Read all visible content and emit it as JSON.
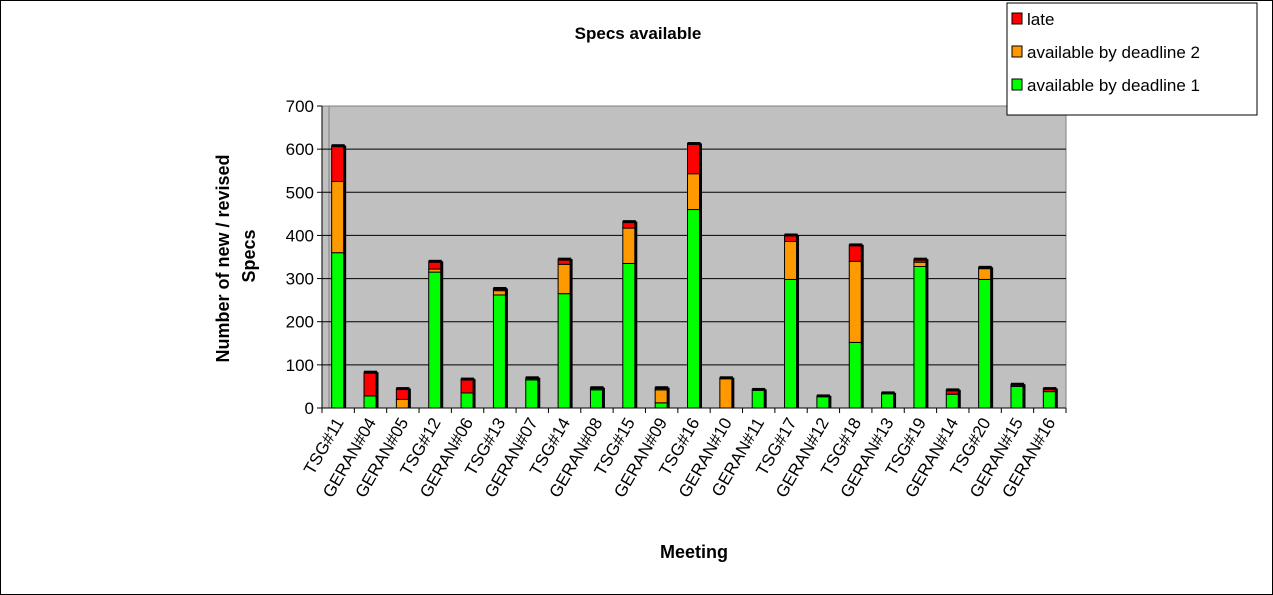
{
  "chart_data": {
    "type": "bar",
    "stacked": true,
    "title": "Specs available",
    "xlabel": "Meeting",
    "ylabel": "Number of new / revised Specs",
    "ylim": [
      0,
      700
    ],
    "yticks": [
      0,
      100,
      200,
      300,
      400,
      500,
      600,
      700
    ],
    "grid": true,
    "legend_position": "top-right",
    "categories": [
      "TSG#11",
      "GERAN#04",
      "GERAN#05",
      "TSG#12",
      "GERAN#06",
      "TSG#13",
      "GERAN#07",
      "TSG#14",
      "GERAN#08",
      "TSG#15",
      "GERAN#09",
      "TSG#16",
      "GERAN#10",
      "GERAN#11",
      "TSG#17",
      "GERAN#12",
      "TSG#18",
      "GERAN#13",
      "TSG#19",
      "GERAN#14",
      "TSG#20",
      "GERAN#15",
      "GERAN#16"
    ],
    "series": [
      {
        "name": "available by deadline 1",
        "color": "#00ff00",
        "values": [
          360,
          28,
          0,
          315,
          35,
          262,
          65,
          265,
          42,
          335,
          12,
          460,
          0,
          43,
          298,
          28,
          152,
          35,
          328,
          32,
          298,
          50,
          38
        ]
      },
      {
        "name": "available by deadline 2",
        "color": "#ff9900",
        "values": [
          165,
          0,
          20,
          7,
          0,
          10,
          0,
          68,
          0,
          82,
          30,
          83,
          68,
          0,
          88,
          0,
          188,
          0,
          10,
          0,
          25,
          0,
          0
        ]
      },
      {
        "name": "late",
        "color": "#ff0000",
        "values": [
          83,
          55,
          25,
          18,
          32,
          5,
          5,
          12,
          5,
          15,
          5,
          70,
          2,
          0,
          15,
          0,
          38,
          0,
          7,
          10,
          3,
          5,
          7
        ]
      }
    ],
    "legend_order": [
      "late",
      "available by deadline 2",
      "available by deadline 1"
    ],
    "plot_background": "#c0c0c0"
  }
}
